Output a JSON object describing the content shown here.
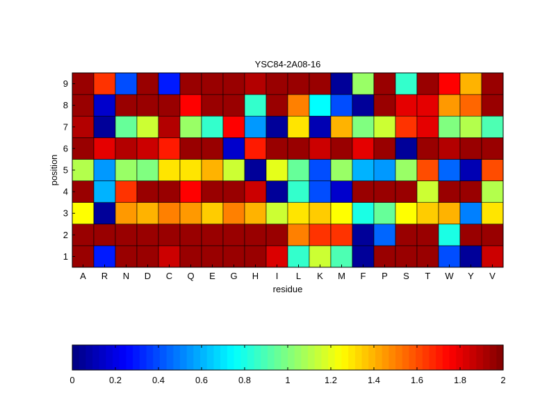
{
  "chart_data": {
    "type": "heatmap",
    "title": "YSC84-2A08-16",
    "xlabel": "residue",
    "ylabel": "position",
    "x_categories": [
      "A",
      "R",
      "N",
      "D",
      "C",
      "Q",
      "E",
      "G",
      "H",
      "I",
      "L",
      "K",
      "M",
      "F",
      "P",
      "S",
      "T",
      "W",
      "Y",
      "V"
    ],
    "y_categories": [
      "1",
      "2",
      "3",
      "4",
      "5",
      "6",
      "7",
      "8",
      "9"
    ],
    "values": [
      [
        1.95,
        0.3,
        1.95,
        1.95,
        1.85,
        1.95,
        1.95,
        1.95,
        1.95,
        1.82,
        0.85,
        1.15,
        0.9,
        0.05,
        1.95,
        1.95,
        1.95,
        0.4,
        0.05,
        1.85
      ],
      [
        1.95,
        1.95,
        1.95,
        1.95,
        1.95,
        1.95,
        1.95,
        1.95,
        1.95,
        1.95,
        1.5,
        1.65,
        1.65,
        0.05,
        0.45,
        1.95,
        1.95,
        0.8,
        1.95,
        1.95
      ],
      [
        1.25,
        0.05,
        1.45,
        1.4,
        1.5,
        1.45,
        1.35,
        1.5,
        1.4,
        1.15,
        1.3,
        1.35,
        1.25,
        0.8,
        0.95,
        1.25,
        1.35,
        1.4,
        0.5,
        1.3
      ],
      [
        1.95,
        0.6,
        1.65,
        1.95,
        1.95,
        1.75,
        1.95,
        1.95,
        1.85,
        0.05,
        0.85,
        0.4,
        0.15,
        1.95,
        1.95,
        1.95,
        1.15,
        1.95,
        1.95,
        1.1
      ],
      [
        1.1,
        0.55,
        1.05,
        1.0,
        1.3,
        1.3,
        1.4,
        1.15,
        0.05,
        1.2,
        0.95,
        0.4,
        1.05,
        0.6,
        0.55,
        1.05,
        1.6,
        0.45,
        0.1,
        1.6
      ],
      [
        1.95,
        1.8,
        1.9,
        1.85,
        1.7,
        1.95,
        1.95,
        0.15,
        1.7,
        1.95,
        1.95,
        1.85,
        1.95,
        1.8,
        1.95,
        0.05,
        1.95,
        1.9,
        1.95,
        1.95
      ],
      [
        1.9,
        0.05,
        0.95,
        1.15,
        1.9,
        1.05,
        0.85,
        1.75,
        0.55,
        0.05,
        1.3,
        0.1,
        1.4,
        1.0,
        1.15,
        1.65,
        1.8,
        1.0,
        1.1,
        0.9
      ],
      [
        1.95,
        0.15,
        1.95,
        1.95,
        1.95,
        1.75,
        1.95,
        1.95,
        0.85,
        1.95,
        1.5,
        0.75,
        0.4,
        0.05,
        1.95,
        1.8,
        1.8,
        1.45,
        1.55,
        1.95
      ],
      [
        1.95,
        1.65,
        0.4,
        1.95,
        0.3,
        1.95,
        1.95,
        1.95,
        1.9,
        1.95,
        1.95,
        1.95,
        0.05,
        1.05,
        1.95,
        0.85,
        1.95,
        1.75,
        1.4,
        1.95
      ]
    ],
    "colormap": "jet",
    "clim": [
      0,
      2
    ],
    "colorbar": {
      "orientation": "horizontal",
      "position": "bottom",
      "ticks": [
        0,
        0.2,
        0.4,
        0.6,
        0.8,
        1,
        1.2,
        1.4,
        1.6,
        1.8,
        2
      ],
      "tick_labels": [
        "0",
        "0.2",
        "0.4",
        "0.6",
        "0.8",
        "1",
        "1.2",
        "1.4",
        "1.6",
        "1.8",
        "2"
      ]
    },
    "grid": false
  }
}
